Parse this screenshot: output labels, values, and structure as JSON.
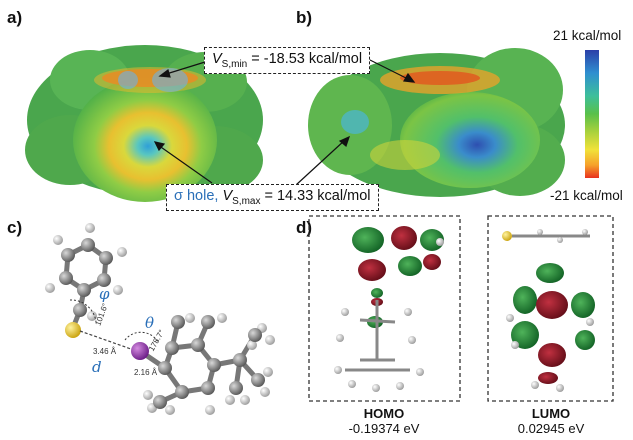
{
  "panels": {
    "a": "a)",
    "b": "b)",
    "c": "c)",
    "d": "d)"
  },
  "callouts": {
    "vmin_prefix": "V",
    "vmin_sub": "S,min",
    "vmin_value": " = -18.53 kcal/mol",
    "sigma_text": "σ hole,",
    "vmax_prefix": "V",
    "vmax_sub": "S,max",
    "vmax_value": " = 14.33 kcal/mol"
  },
  "color_scale": {
    "top_label": "21 kcal/mol",
    "bottom_label": "-21 kcal/mol",
    "colors": [
      "#2b3fa8",
      "#2f8fd0",
      "#3dbf9a",
      "#59c04a",
      "#a9d13c",
      "#f1e23a",
      "#f6a12a",
      "#e8321f"
    ]
  },
  "geometry_labels": {
    "phi": "φ",
    "phi_value": "101.6°",
    "theta": "θ",
    "theta_value": "178.7°",
    "d": "d",
    "d_value": "3.46 Å",
    "bond_value": "2.16 Å"
  },
  "orbitals": {
    "homo_name": "HOMO",
    "homo_energy": "-0.19374 eV",
    "lumo_name": "LUMO",
    "lumo_energy": "0.02945 eV"
  }
}
